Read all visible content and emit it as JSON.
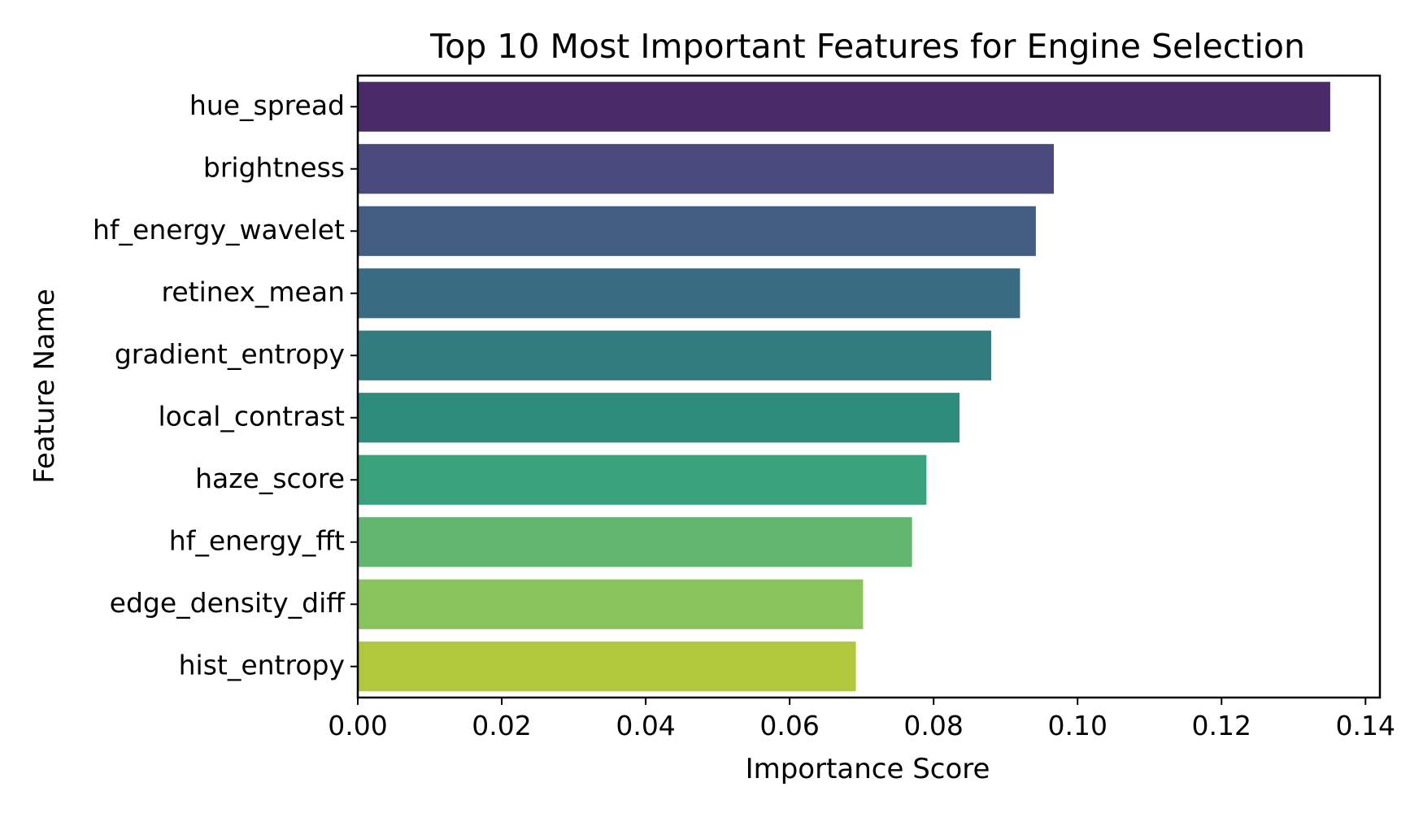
{
  "chart_data": {
    "type": "bar",
    "orientation": "horizontal",
    "title": "Top 10 Most Important Features for Engine Selection",
    "xlabel": "Importance Score",
    "ylabel": "Feature Name",
    "xlim": [
      0,
      0.142
    ],
    "xticks": [
      "0.00",
      "0.02",
      "0.04",
      "0.06",
      "0.08",
      "0.10",
      "0.12",
      "0.14"
    ],
    "grid": false,
    "legend": "none",
    "colormap": "viridis",
    "categories": [
      "hue_spread",
      "brightness",
      "hf_energy_wavelet",
      "retinex_mean",
      "gradient_entropy",
      "local_contrast",
      "haze_score",
      "hf_energy_fft",
      "edge_density_diff",
      "hist_entropy"
    ],
    "values": [
      0.1351,
      0.0967,
      0.0942,
      0.092,
      0.088,
      0.0836,
      0.079,
      0.077,
      0.0702,
      0.0692
    ],
    "colors": [
      "#4a2b69",
      "#4a4a7e",
      "#435c82",
      "#396c82",
      "#327c80",
      "#2e8c7d",
      "#3aa27a",
      "#62b670",
      "#88c45b",
      "#b1c73c"
    ]
  }
}
